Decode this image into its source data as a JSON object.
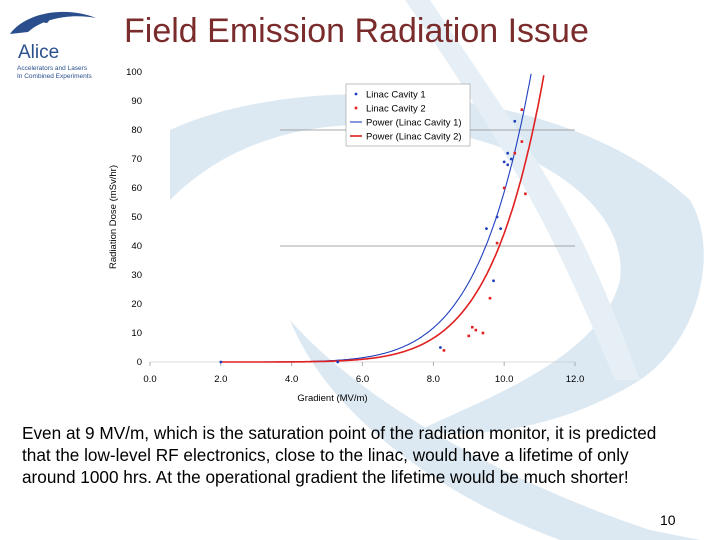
{
  "slide": {
    "title": "Field Emission Radiation Issue",
    "body_text": "Even at 9 MV/m, which is the saturation point of the radiation monitor, it is predicted that the low-level RF electronics, close to the linac, would have a lifetime of only around 1000 hrs. At the operational gradient the lifetime would be much shorter!",
    "page_number": "10"
  },
  "logo": {
    "word": "Alice",
    "line1": "Accelerators and Lasers",
    "line2": "In Combined Experiments"
  },
  "colors": {
    "title": "#7a2b2b",
    "cavity1": "#1f3fbf",
    "cavity2": "#e02020",
    "swoosh": "#c9dbe8"
  },
  "chart_data": {
    "type": "scatter",
    "xlabel": "Gradient (MV/m)",
    "ylabel": "Radiation Dose (mSv/hr)",
    "xlim": [
      0,
      12
    ],
    "ylim": [
      0,
      100
    ],
    "x_ticks": [
      "0.0",
      "2.0",
      "4.0",
      "6.0",
      "8.0",
      "10.0",
      "12.0"
    ],
    "y_ticks": [
      "0",
      "10",
      "20",
      "30",
      "40",
      "50",
      "60",
      "70",
      "80",
      "90",
      "100"
    ],
    "legend_position": "top-right",
    "legend": [
      "Linac Cavity 1",
      "Linac Cavity 2",
      "Power (Linac Cavity 1)",
      "Power (Linac Cavity 2)"
    ],
    "series": [
      {
        "name": "Linac Cavity 1",
        "points": [
          [
            2.0,
            0
          ],
          [
            5.3,
            0
          ],
          [
            8.2,
            5
          ],
          [
            9.5,
            46
          ],
          [
            9.7,
            28
          ],
          [
            9.8,
            50
          ],
          [
            9.9,
            46
          ],
          [
            10.0,
            69
          ],
          [
            10.1,
            72
          ],
          [
            10.1,
            68
          ],
          [
            10.2,
            70
          ],
          [
            10.3,
            83
          ]
        ]
      },
      {
        "name": "Linac Cavity 2",
        "points": [
          [
            8.3,
            4
          ],
          [
            9.0,
            9
          ],
          [
            9.1,
            12
          ],
          [
            9.2,
            11
          ],
          [
            9.4,
            10
          ],
          [
            9.6,
            22
          ],
          [
            9.8,
            41
          ],
          [
            10.0,
            60
          ],
          [
            10.3,
            72
          ],
          [
            10.5,
            76
          ],
          [
            10.6,
            58
          ],
          [
            10.5,
            87
          ]
        ]
      }
    ],
    "fits": [
      {
        "name": "Power (Linac Cavity 1)",
        "model": "power",
        "a": 3.7e-06,
        "b": 7.2
      },
      {
        "name": "Power (Linac Cavity 2)",
        "model": "power",
        "a": 1.25e-06,
        "b": 7.55
      }
    ]
  }
}
